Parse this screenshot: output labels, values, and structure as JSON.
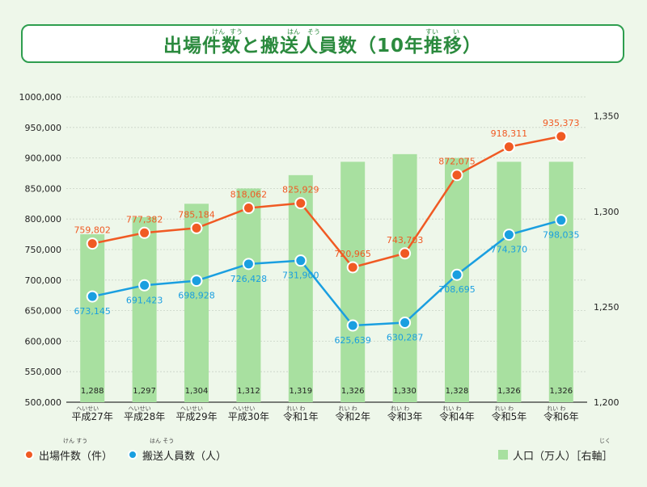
{
  "title": "出場件数と搬送人員数（10年推移）",
  "title_ruby": [
    "けん",
    "すう",
    "はん",
    "そう",
    "すい",
    "い"
  ],
  "legend": {
    "dispatches": "出場件数（件）",
    "transported": "搬送人員数（人）",
    "population": "人口（万人）［右軸］",
    "dispatches_ruby": "けん すう",
    "transported_ruby": "はん そう",
    "population_ruby": "じく"
  },
  "colors": {
    "dispatches": "#f05a23",
    "transported": "#1a9fe0",
    "population": "#a8e0a0",
    "title": "#2b8a3e"
  },
  "chart_data": {
    "type": "bar",
    "categories": [
      "平成27年",
      "平成28年",
      "平成29年",
      "平成30年",
      "令和1年",
      "令和2年",
      "令和3年",
      "令和4年",
      "令和5年",
      "令和6年"
    ],
    "category_ruby": [
      "へいせい",
      "へいせい",
      "へいせい",
      "へいせい",
      "れい わ",
      "れい わ",
      "れい わ",
      "れい わ",
      "れい わ",
      "れい わ"
    ],
    "left_ticks": [
      "500,000",
      "550,000",
      "600,000",
      "650,000",
      "700,000",
      "750,000",
      "800,000",
      "850,000",
      "900,000",
      "950,000",
      "1000,000"
    ],
    "right_ticks": [
      "1,200",
      "1,250",
      "1,300",
      "1,350"
    ],
    "ylim_left": [
      500000,
      1000000
    ],
    "ylim_right": [
      1200,
      1360
    ],
    "series": [
      {
        "name": "出場件数（件）",
        "kind": "line",
        "axis": "left",
        "values": [
          759802,
          777382,
          785184,
          818062,
          825929,
          720965,
          743703,
          872075,
          918311,
          935373
        ],
        "labels": [
          "759,802",
          "777,382",
          "785,184",
          "818,062",
          "825,929",
          "720,965",
          "743,703",
          "872,075",
          "918,311",
          "935,373"
        ]
      },
      {
        "name": "搬送人員数（人）",
        "kind": "line",
        "axis": "left",
        "values": [
          673145,
          691423,
          698928,
          726428,
          731900,
          625639,
          630287,
          708695,
          774370,
          798035
        ],
        "labels": [
          "673,145",
          "691,423",
          "698,928",
          "726,428",
          "731,900",
          "625,639",
          "630,287",
          "708,695",
          "774,370",
          "798,035"
        ]
      },
      {
        "name": "人口（万人）",
        "kind": "bar",
        "axis": "right",
        "values": [
          1288,
          1297,
          1304,
          1312,
          1319,
          1326,
          1330,
          1328,
          1326,
          1326
        ],
        "labels": [
          "1,288",
          "1,297",
          "1,304",
          "1,312",
          "1,319",
          "1,326",
          "1,330",
          "1,328",
          "1,326",
          "1,326"
        ]
      }
    ],
    "grid": true,
    "legend_position": "bottom"
  }
}
